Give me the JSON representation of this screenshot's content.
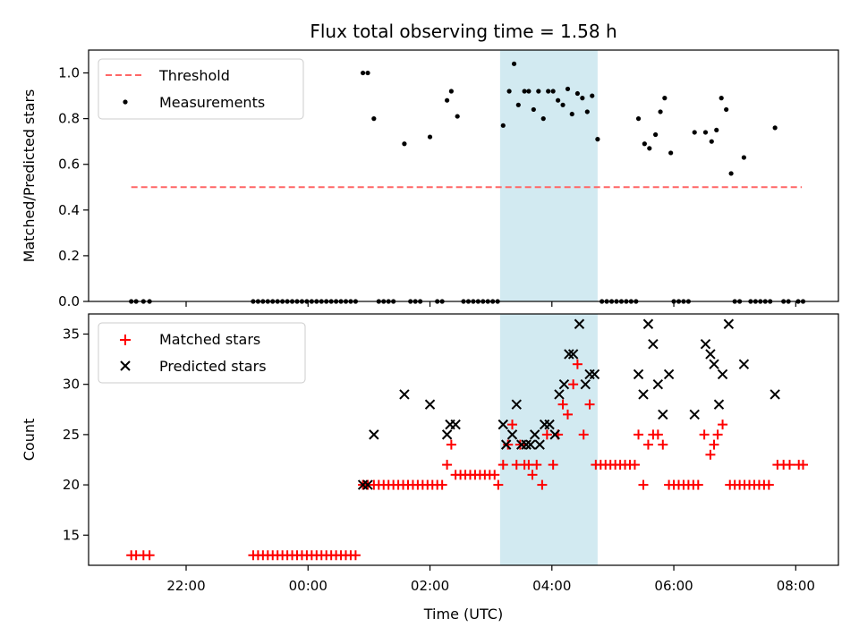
{
  "title": "Flux total observing time = 1.58 h",
  "xlabel": "Time (UTC)",
  "xticks": [
    {
      "label": "22:00",
      "value": -2
    },
    {
      "label": "00:00",
      "value": 0
    },
    {
      "label": "02:00",
      "value": 2
    },
    {
      "label": "04:00",
      "value": 4
    },
    {
      "label": "06:00",
      "value": 6
    },
    {
      "label": "08:00",
      "value": 8
    }
  ],
  "xlim": [
    -3.6,
    8.7
  ],
  "highlight": {
    "from": 3.15,
    "to": 4.75,
    "color": "#add8e6"
  },
  "colors": {
    "threshold": "#ff6666",
    "measurements": "#000000",
    "matched": "#ff0000",
    "predicted": "#000000"
  },
  "chart_data": [
    {
      "type": "scatter",
      "ylabel": "Matched/Predicted stars",
      "ylim": [
        0,
        1.1
      ],
      "yticks": [
        "0.0",
        "0.2",
        "0.4",
        "0.6",
        "0.8",
        "1.0"
      ],
      "legend": {
        "position": "upper-left",
        "entries": [
          "Threshold",
          "Measurements"
        ]
      },
      "threshold": {
        "name": "Threshold",
        "value": 0.5,
        "x": [
          -2.9,
          8.1
        ],
        "style": "dashed"
      },
      "series": [
        {
          "name": "Measurements",
          "points": [
            [
              -2.9,
              0
            ],
            [
              -2.82,
              0
            ],
            [
              -2.7,
              0
            ],
            [
              -2.6,
              0
            ],
            [
              -0.9,
              0
            ],
            [
              -0.82,
              0
            ],
            [
              -0.74,
              0
            ],
            [
              -0.66,
              0
            ],
            [
              -0.58,
              0
            ],
            [
              -0.5,
              0
            ],
            [
              -0.42,
              0
            ],
            [
              -0.34,
              0
            ],
            [
              -0.26,
              0
            ],
            [
              -0.18,
              0
            ],
            [
              -0.1,
              0
            ],
            [
              -0.02,
              0
            ],
            [
              0.06,
              0
            ],
            [
              0.14,
              0
            ],
            [
              0.22,
              0
            ],
            [
              0.3,
              0
            ],
            [
              0.38,
              0
            ],
            [
              0.46,
              0
            ],
            [
              0.54,
              0
            ],
            [
              0.62,
              0
            ],
            [
              0.7,
              0
            ],
            [
              0.78,
              0
            ],
            [
              0.9,
              1.0
            ],
            [
              0.98,
              1.0
            ],
            [
              1.08,
              0.8
            ],
            [
              1.16,
              0
            ],
            [
              1.24,
              0
            ],
            [
              1.32,
              0
            ],
            [
              1.4,
              0
            ],
            [
              1.58,
              0.69
            ],
            [
              1.68,
              0
            ],
            [
              1.76,
              0
            ],
            [
              1.84,
              0
            ],
            [
              2.0,
              0.72
            ],
            [
              2.12,
              0
            ],
            [
              2.2,
              0
            ],
            [
              2.28,
              0.88
            ],
            [
              2.35,
              0.92
            ],
            [
              2.45,
              0.81
            ],
            [
              2.55,
              0
            ],
            [
              2.63,
              0
            ],
            [
              2.71,
              0
            ],
            [
              2.79,
              0
            ],
            [
              2.87,
              0
            ],
            [
              2.95,
              0
            ],
            [
              3.03,
              0
            ],
            [
              3.11,
              0
            ],
            [
              3.2,
              0.77
            ],
            [
              3.3,
              0.92
            ],
            [
              3.38,
              1.04
            ],
            [
              3.45,
              0.86
            ],
            [
              3.55,
              0.92
            ],
            [
              3.62,
              0.92
            ],
            [
              3.7,
              0.84
            ],
            [
              3.78,
              0.92
            ],
            [
              3.86,
              0.8
            ],
            [
              3.94,
              0.92
            ],
            [
              4.02,
              0.92
            ],
            [
              4.1,
              0.88
            ],
            [
              4.18,
              0.86
            ],
            [
              4.26,
              0.93
            ],
            [
              4.33,
              0.82
            ],
            [
              4.42,
              0.91
            ],
            [
              4.5,
              0.89
            ],
            [
              4.58,
              0.83
            ],
            [
              4.66,
              0.9
            ],
            [
              4.75,
              0.71
            ],
            [
              4.82,
              0
            ],
            [
              4.9,
              0
            ],
            [
              4.98,
              0
            ],
            [
              5.06,
              0
            ],
            [
              5.14,
              0
            ],
            [
              5.22,
              0
            ],
            [
              5.3,
              0
            ],
            [
              5.38,
              0
            ],
            [
              5.42,
              0.8
            ],
            [
              5.52,
              0.69
            ],
            [
              5.6,
              0.67
            ],
            [
              5.7,
              0.73
            ],
            [
              5.78,
              0.83
            ],
            [
              5.85,
              0.89
            ],
            [
              5.95,
              0.65
            ],
            [
              6.0,
              0
            ],
            [
              6.08,
              0
            ],
            [
              6.16,
              0
            ],
            [
              6.24,
              0
            ],
            [
              6.34,
              0.74
            ],
            [
              6.52,
              0.74
            ],
            [
              6.62,
              0.7
            ],
            [
              6.7,
              0.75
            ],
            [
              6.78,
              0.89
            ],
            [
              6.86,
              0.84
            ],
            [
              6.94,
              0.56
            ],
            [
              7.0,
              0
            ],
            [
              7.08,
              0
            ],
            [
              7.15,
              0.63
            ],
            [
              7.26,
              0
            ],
            [
              7.34,
              0
            ],
            [
              7.42,
              0
            ],
            [
              7.5,
              0
            ],
            [
              7.58,
              0
            ],
            [
              7.66,
              0.76
            ],
            [
              7.8,
              0
            ],
            [
              7.88,
              0
            ],
            [
              8.04,
              0
            ],
            [
              8.12,
              0
            ]
          ]
        }
      ]
    },
    {
      "type": "scatter",
      "ylabel": "Count",
      "ylim": [
        12,
        37
      ],
      "yticks": [
        "15",
        "20",
        "25",
        "30",
        "35"
      ],
      "legend": {
        "position": "upper-left",
        "entries": [
          "Matched stars",
          "Predicted stars"
        ]
      },
      "series": [
        {
          "name": "Matched stars",
          "marker": "plus",
          "points": [
            [
              -2.9,
              13
            ],
            [
              -2.82,
              13
            ],
            [
              -2.7,
              13
            ],
            [
              -2.6,
              13
            ],
            [
              -0.9,
              13
            ],
            [
              -0.82,
              13
            ],
            [
              -0.74,
              13
            ],
            [
              -0.66,
              13
            ],
            [
              -0.58,
              13
            ],
            [
              -0.5,
              13
            ],
            [
              -0.42,
              13
            ],
            [
              -0.34,
              13
            ],
            [
              -0.26,
              13
            ],
            [
              -0.18,
              13
            ],
            [
              -0.1,
              13
            ],
            [
              -0.02,
              13
            ],
            [
              0.06,
              13
            ],
            [
              0.14,
              13
            ],
            [
              0.22,
              13
            ],
            [
              0.3,
              13
            ],
            [
              0.38,
              13
            ],
            [
              0.46,
              13
            ],
            [
              0.54,
              13
            ],
            [
              0.62,
              13
            ],
            [
              0.7,
              13
            ],
            [
              0.78,
              13
            ],
            [
              0.9,
              20
            ],
            [
              0.98,
              20
            ],
            [
              1.08,
              20
            ],
            [
              1.16,
              20
            ],
            [
              1.24,
              20
            ],
            [
              1.32,
              20
            ],
            [
              1.4,
              20
            ],
            [
              1.48,
              20
            ],
            [
              1.56,
              20
            ],
            [
              1.64,
              20
            ],
            [
              1.72,
              20
            ],
            [
              1.8,
              20
            ],
            [
              1.88,
              20
            ],
            [
              1.96,
              20
            ],
            [
              2.04,
              20
            ],
            [
              2.12,
              20
            ],
            [
              2.2,
              20
            ],
            [
              2.28,
              22
            ],
            [
              2.35,
              24
            ],
            [
              2.42,
              21
            ],
            [
              2.5,
              21
            ],
            [
              2.58,
              21
            ],
            [
              2.66,
              21
            ],
            [
              2.74,
              21
            ],
            [
              2.82,
              21
            ],
            [
              2.9,
              21
            ],
            [
              2.98,
              21
            ],
            [
              3.06,
              21
            ],
            [
              3.12,
              20
            ],
            [
              3.2,
              22
            ],
            [
              3.28,
              24
            ],
            [
              3.35,
              26
            ],
            [
              3.42,
              22
            ],
            [
              3.48,
              24
            ],
            [
              3.55,
              22
            ],
            [
              3.62,
              22
            ],
            [
              3.68,
              21
            ],
            [
              3.75,
              22
            ],
            [
              3.84,
              20
            ],
            [
              3.92,
              25
            ],
            [
              4.02,
              22
            ],
            [
              4.1,
              25
            ],
            [
              4.18,
              28
            ],
            [
              4.26,
              27
            ],
            [
              4.35,
              30
            ],
            [
              4.42,
              32
            ],
            [
              4.52,
              25
            ],
            [
              4.62,
              28
            ],
            [
              4.72,
              22
            ],
            [
              4.8,
              22
            ],
            [
              4.88,
              22
            ],
            [
              4.96,
              22
            ],
            [
              5.04,
              22
            ],
            [
              5.12,
              22
            ],
            [
              5.2,
              22
            ],
            [
              5.28,
              22
            ],
            [
              5.36,
              22
            ],
            [
              5.42,
              25
            ],
            [
              5.5,
              20
            ],
            [
              5.58,
              24
            ],
            [
              5.66,
              25
            ],
            [
              5.74,
              25
            ],
            [
              5.82,
              24
            ],
            [
              5.92,
              20
            ],
            [
              6.0,
              20
            ],
            [
              6.08,
              20
            ],
            [
              6.16,
              20
            ],
            [
              6.24,
              20
            ],
            [
              6.32,
              20
            ],
            [
              6.4,
              20
            ],
            [
              6.5,
              25
            ],
            [
              6.6,
              23
            ],
            [
              6.66,
              24
            ],
            [
              6.72,
              25
            ],
            [
              6.8,
              26
            ],
            [
              6.92,
              20
            ],
            [
              7.0,
              20
            ],
            [
              7.08,
              20
            ],
            [
              7.16,
              20
            ],
            [
              7.24,
              20
            ],
            [
              7.32,
              20
            ],
            [
              7.4,
              20
            ],
            [
              7.48,
              20
            ],
            [
              7.56,
              20
            ],
            [
              7.7,
              22
            ],
            [
              7.8,
              22
            ],
            [
              7.9,
              22
            ],
            [
              8.05,
              22
            ],
            [
              8.12,
              22
            ]
          ]
        },
        {
          "name": "Predicted stars",
          "marker": "x",
          "points": [
            [
              0.9,
              20
            ],
            [
              0.98,
              20
            ],
            [
              1.08,
              25
            ],
            [
              1.58,
              29
            ],
            [
              2.0,
              28
            ],
            [
              2.28,
              25
            ],
            [
              2.33,
              26
            ],
            [
              2.42,
              26
            ],
            [
              3.2,
              26
            ],
            [
              3.25,
              24
            ],
            [
              3.35,
              25
            ],
            [
              3.42,
              28
            ],
            [
              3.5,
              24
            ],
            [
              3.58,
              24
            ],
            [
              3.65,
              24
            ],
            [
              3.72,
              25
            ],
            [
              3.8,
              24
            ],
            [
              3.88,
              26
            ],
            [
              3.96,
              26
            ],
            [
              4.05,
              25
            ],
            [
              4.12,
              29
            ],
            [
              4.2,
              30
            ],
            [
              4.28,
              33
            ],
            [
              4.35,
              33
            ],
            [
              4.45,
              36
            ],
            [
              4.55,
              30
            ],
            [
              4.62,
              31
            ],
            [
              4.7,
              31
            ],
            [
              5.42,
              31
            ],
            [
              5.5,
              29
            ],
            [
              5.58,
              36
            ],
            [
              5.66,
              34
            ],
            [
              5.74,
              30
            ],
            [
              5.82,
              27
            ],
            [
              5.92,
              31
            ],
            [
              6.34,
              27
            ],
            [
              6.52,
              34
            ],
            [
              6.6,
              33
            ],
            [
              6.66,
              32
            ],
            [
              6.74,
              28
            ],
            [
              6.8,
              31
            ],
            [
              6.9,
              36
            ],
            [
              7.15,
              32
            ],
            [
              7.66,
              29
            ]
          ]
        }
      ]
    }
  ]
}
